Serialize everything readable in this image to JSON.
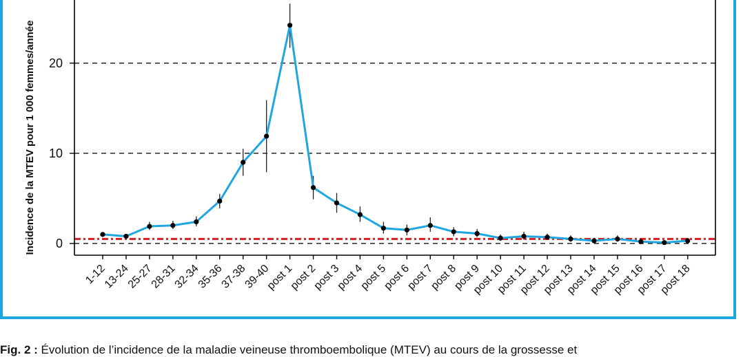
{
  "colors": {
    "frame": "#1ea6e0",
    "line": "#1ea6e0",
    "reference": "#d42020",
    "grid": "#111111",
    "points": "#000000"
  },
  "caption": {
    "label": "Fig. 2 :",
    "text": "Évolution de l’incidence de la maladie veineuse thromboembolique (MTEV) au cours de la grossesse et"
  },
  "chart_data": {
    "type": "line",
    "ylabel": "Incidence de la MTEV pour 1 000 femmes/année",
    "ylim": [
      -1.3,
      27
    ],
    "yticks": [
      0,
      10,
      20
    ],
    "grid": "horizontal dashed at 0, 10, 20",
    "reference_line": 0.5,
    "categories": [
      "1-12",
      "13-24",
      "25-27",
      "28-31",
      "32-34",
      "35-36",
      "37-38",
      "39-40",
      "post 1",
      "post 2",
      "post 3",
      "post 4",
      "post 5",
      "post 6",
      "post 7",
      "post 8",
      "post 9",
      "post 10",
      "post 11",
      "post 12",
      "post 13",
      "post 14",
      "post 15",
      "post 16",
      "post 17",
      "post 18"
    ],
    "values": [
      1.0,
      0.8,
      1.9,
      2.0,
      2.4,
      4.7,
      9.0,
      11.9,
      24.2,
      6.2,
      4.5,
      3.2,
      1.7,
      1.5,
      2.0,
      1.3,
      1.1,
      0.6,
      0.8,
      0.7,
      0.5,
      0.3,
      0.5,
      0.2,
      0.1,
      0.3
    ],
    "err_low": [
      0.9,
      0.7,
      1.5,
      1.6,
      1.9,
      3.9,
      7.5,
      7.9,
      21.7,
      4.9,
      3.4,
      2.4,
      1.1,
      0.9,
      1.3,
      0.8,
      0.7,
      0.3,
      0.4,
      0.4,
      0.2,
      0.1,
      0.2,
      0.0,
      0.0,
      0.1
    ],
    "err_high": [
      1.1,
      1.0,
      2.4,
      2.5,
      3.0,
      5.5,
      10.5,
      15.9,
      26.6,
      7.5,
      5.6,
      4.1,
      2.4,
      2.1,
      2.9,
      1.8,
      1.6,
      1.0,
      1.3,
      1.1,
      0.9,
      0.6,
      0.9,
      0.5,
      0.3,
      0.6
    ]
  }
}
